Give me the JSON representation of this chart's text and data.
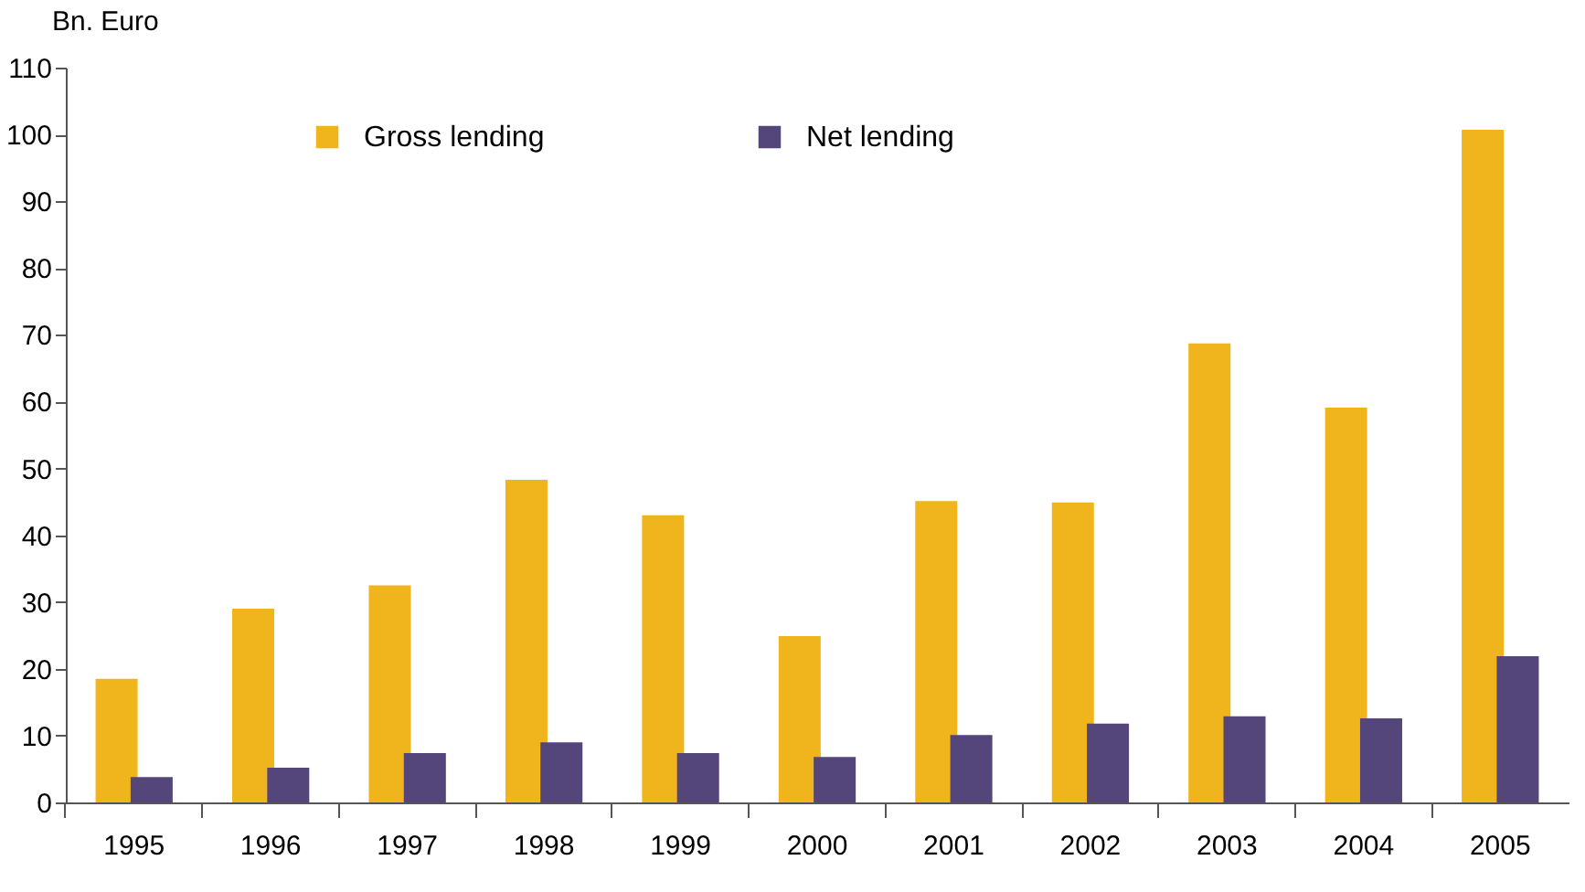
{
  "chart_data": {
    "type": "bar",
    "ylabel": "Bn. Euro",
    "categories": [
      "1995",
      "1996",
      "1997",
      "1998",
      "1999",
      "2000",
      "2001",
      "2002",
      "2003",
      "2004",
      "2005"
    ],
    "series": [
      {
        "name": "Gross lending",
        "color": "#f0b41c",
        "values": [
          18.5,
          29,
          32.5,
          48.3,
          43,
          24.9,
          45.1,
          44.9,
          68.7,
          59.1,
          100.7
        ]
      },
      {
        "name": "Net lending",
        "color": "#54457a",
        "values": [
          3.8,
          5.2,
          7.4,
          9,
          7.4,
          6.8,
          10.1,
          11.8,
          12.9,
          12.6,
          21.9
        ]
      }
    ],
    "ylim": [
      0,
      110
    ],
    "yticks": [
      0,
      10,
      20,
      30,
      40,
      50,
      60,
      70,
      80,
      90,
      100,
      110
    ],
    "grid": false,
    "legend": "top left"
  }
}
